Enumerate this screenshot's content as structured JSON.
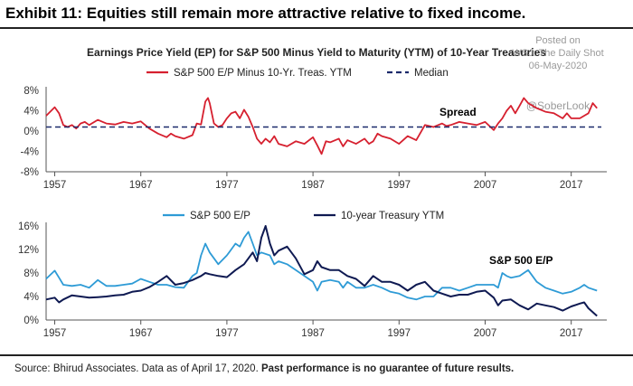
{
  "exhibit_title": "Exhibit 11: Equities still remain more attractive relative to fixed income.",
  "panel_title": "Earnings Price Yield (EP) for S&P 500 Minus Yield to Maturity (YTM) of 10-Year Treasuries",
  "watermark": {
    "line1": "Posted on",
    "line2": "WSJ: The Daily Shot",
    "line3": "06-May-2020",
    "handle": "@SoberLook"
  },
  "source": {
    "prefix": "Source: Bhirud Associates. Data as of April 17, 2020.",
    "bold": "Past performance is no guarantee of future results."
  },
  "colors": {
    "spread": "#d6202f",
    "median": "#1b2a6b",
    "ep": "#2e9bd6",
    "treasury": "#0f1a52",
    "axis": "#555555"
  },
  "chart_data": [
    {
      "type": "line",
      "title": "",
      "xlabel": "",
      "ylabel": "",
      "xlim": [
        1956,
        2020.5
      ],
      "ylim": [
        -8,
        8
      ],
      "yticks": [
        -8,
        -4,
        0,
        4,
        8
      ],
      "ytick_labels": [
        "-8%",
        "-4%",
        "0%",
        "4%",
        "8%"
      ],
      "xticks": [
        1957,
        1967,
        1977,
        1987,
        1997,
        2007,
        2017
      ],
      "xtick_labels": [
        "1957",
        "1967",
        "1977",
        "1987",
        "1997",
        "2007",
        "2017"
      ],
      "legend": [
        "S&P 500 E/P Minus 10-Yr. Treas. YTM",
        "Median"
      ],
      "annotation": "Spread",
      "series": [
        {
          "name": "S&P 500 E/P Minus 10-Yr. Treas. YTM",
          "x": [
            1956,
            1957,
            1957.5,
            1958,
            1958.5,
            1959,
            1959.5,
            1960,
            1960.5,
            1961,
            1962,
            1963,
            1964,
            1965,
            1966,
            1967,
            1968,
            1969,
            1970,
            1970.5,
            1971,
            1972,
            1973,
            1973.5,
            1974,
            1974.5,
            1974.8,
            1975,
            1975.5,
            1976,
            1976.5,
            1977,
            1977.5,
            1978,
            1978.5,
            1979,
            1979.5,
            1980,
            1980.5,
            1981,
            1981.5,
            1982,
            1982.5,
            1983,
            1984,
            1985,
            1986,
            1987,
            1987.5,
            1988,
            1988.5,
            1989,
            1990,
            1990.5,
            1991,
            1992,
            1993,
            1993.5,
            1994,
            1994.5,
            1995,
            1996,
            1997,
            1998,
            1999,
            2000,
            2001,
            2002,
            2002.5,
            2003,
            2004,
            2005,
            2006,
            2007,
            2008,
            2008.5,
            2009,
            2009.5,
            2010,
            2010.5,
            2011,
            2011.5,
            2012,
            2013,
            2014,
            2015,
            2016,
            2016.5,
            2017,
            2018,
            2019,
            2019.5,
            2020
          ],
          "values": [
            3,
            4.7,
            3.5,
            1.2,
            0.8,
            1.2,
            0.5,
            1.5,
            1.8,
            1.2,
            2.2,
            1.5,
            1.3,
            1.8,
            1.5,
            1.9,
            0.5,
            -0.5,
            -1.2,
            -0.5,
            -1.0,
            -1.5,
            -0.8,
            1.5,
            1.3,
            5.8,
            6.5,
            5.5,
            1.5,
            0.8,
            1.2,
            2.5,
            3.5,
            3.8,
            2.5,
            4.2,
            2.8,
            0.8,
            -1.5,
            -2.5,
            -1.5,
            -2.2,
            -1.0,
            -2.5,
            -3.0,
            -2.0,
            -2.5,
            -1.2,
            -2.8,
            -4.5,
            -2.0,
            -2.2,
            -1.5,
            -3.0,
            -1.8,
            -2.5,
            -1.5,
            -2.5,
            -2.0,
            -0.5,
            -1.0,
            -1.5,
            -2.5,
            -1.0,
            -1.8,
            1.2,
            0.8,
            1.5,
            1.0,
            1.2,
            1.8,
            1.5,
            1.2,
            1.8,
            0.2,
            1.5,
            2.5,
            4.0,
            5.0,
            3.5,
            5.0,
            6.5,
            5.5,
            4.5,
            3.8,
            3.5,
            2.5,
            3.5,
            2.5,
            2.5,
            3.5,
            5.5,
            4.5
          ]
        },
        {
          "name": "Median",
          "x": [
            1956,
            2020.5
          ],
          "values": [
            0.8,
            0.8
          ]
        }
      ]
    },
    {
      "type": "line",
      "title": "",
      "xlabel": "",
      "ylabel": "",
      "xlim": [
        1956,
        2020.5
      ],
      "ylim": [
        0,
        16
      ],
      "yticks": [
        0,
        4,
        8,
        12,
        16
      ],
      "ytick_labels": [
        "0%",
        "4%",
        "8%",
        "12%",
        "16%"
      ],
      "xticks": [
        1957,
        1967,
        1977,
        1987,
        1997,
        2007,
        2017
      ],
      "xtick_labels": [
        "1957",
        "1967",
        "1977",
        "1987",
        "1997",
        "2007",
        "2017"
      ],
      "legend": [
        "S&P 500 E/P",
        "10-year Treasury YTM"
      ],
      "annotation": "S&P 500 E/P",
      "series": [
        {
          "name": "S&P 500 E/P",
          "x": [
            1956,
            1957,
            1957.5,
            1958,
            1959,
            1960,
            1961,
            1962,
            1963,
            1964,
            1965,
            1966,
            1967,
            1968,
            1969,
            1970,
            1971,
            1972,
            1973,
            1973.5,
            1974,
            1974.5,
            1975,
            1976,
            1977,
            1977.5,
            1978,
            1978.5,
            1979,
            1979.5,
            1980,
            1980.5,
            1981,
            1982,
            1982.5,
            1983,
            1984,
            1985,
            1986,
            1987,
            1987.5,
            1988,
            1989,
            1990,
            1990.5,
            1991,
            1992,
            1993,
            1994,
            1995,
            1996,
            1997,
            1998,
            1999,
            2000,
            2001,
            2002,
            2003,
            2004,
            2005,
            2006,
            2007,
            2008,
            2008.5,
            2009,
            2009.5,
            2010,
            2011,
            2012,
            2013,
            2014,
            2015,
            2016,
            2017,
            2018,
            2018.5,
            2019,
            2020
          ],
          "values": [
            7.0,
            8.4,
            7.2,
            6.0,
            5.8,
            6.0,
            5.5,
            6.8,
            5.8,
            5.8,
            6.0,
            6.2,
            7.0,
            6.5,
            6.0,
            6.0,
            5.6,
            5.5,
            7.5,
            8.0,
            11.0,
            13.0,
            11.5,
            9.5,
            11.0,
            12.0,
            13.0,
            12.5,
            14.0,
            15.0,
            13.0,
            11.0,
            11.5,
            11.0,
            9.5,
            10.0,
            9.5,
            8.5,
            7.5,
            6.5,
            5.0,
            6.5,
            6.8,
            6.5,
            5.5,
            6.5,
            5.5,
            5.5,
            6.0,
            5.5,
            4.8,
            4.5,
            3.8,
            3.5,
            4.0,
            4.0,
            5.5,
            5.5,
            5.0,
            5.5,
            6.0,
            6.0,
            6.0,
            5.5,
            8.0,
            7.5,
            7.2,
            7.5,
            8.5,
            6.5,
            5.5,
            5.0,
            4.5,
            4.8,
            5.5,
            6.0,
            5.5,
            5.0
          ]
        },
        {
          "name": "10-year Treasury YTM",
          "x": [
            1956,
            1957,
            1957.5,
            1958,
            1959,
            1960,
            1961,
            1962,
            1963,
            1964,
            1965,
            1966,
            1967,
            1968,
            1969,
            1970,
            1971,
            1972,
            1973,
            1974,
            1974.5,
            1975,
            1976,
            1977,
            1978,
            1979,
            1979.5,
            1980,
            1980.5,
            1981,
            1981.5,
            1982,
            1982.5,
            1983,
            1984,
            1985,
            1986,
            1987,
            1987.5,
            1988,
            1989,
            1990,
            1991,
            1992,
            1993,
            1994,
            1995,
            1996,
            1997,
            1998,
            1999,
            2000,
            2001,
            2002,
            2003,
            2004,
            2005,
            2006,
            2007,
            2008,
            2008.5,
            2009,
            2010,
            2011,
            2012,
            2013,
            2014,
            2015,
            2016,
            2017,
            2018,
            2018.5,
            2019,
            2020
          ],
          "values": [
            3.5,
            3.8,
            3.0,
            3.5,
            4.2,
            4.0,
            3.8,
            3.9,
            4.0,
            4.2,
            4.3,
            4.8,
            5.0,
            5.6,
            6.5,
            7.5,
            6.0,
            6.3,
            6.8,
            7.5,
            8.0,
            7.8,
            7.5,
            7.3,
            8.5,
            9.5,
            10.5,
            11.5,
            10.0,
            14.0,
            16.0,
            13.0,
            11.0,
            11.8,
            12.5,
            10.5,
            7.8,
            8.5,
            10.0,
            9.0,
            8.5,
            8.5,
            7.5,
            7.0,
            5.8,
            7.5,
            6.5,
            6.5,
            6.0,
            5.0,
            6.0,
            6.5,
            5.0,
            4.5,
            4.0,
            4.3,
            4.3,
            4.8,
            5.0,
            3.8,
            2.5,
            3.3,
            3.5,
            2.5,
            1.8,
            2.8,
            2.5,
            2.2,
            1.6,
            2.3,
            2.8,
            3.0,
            2.0,
            0.7
          ]
        }
      ]
    }
  ]
}
